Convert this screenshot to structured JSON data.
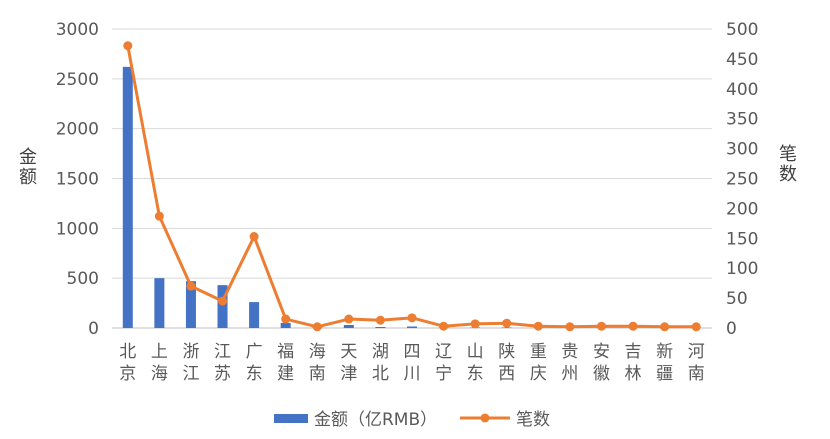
{
  "chart_data": {
    "type": "bar+line",
    "categories": [
      "北京",
      "上海",
      "浙江",
      "江苏",
      "广东",
      "福建",
      "海南",
      "天津",
      "湖北",
      "四川",
      "辽宁",
      "山东",
      "陕西",
      "重庆",
      "贵州",
      "安徽",
      "吉林",
      "新疆",
      "河南"
    ],
    "category_labels": [
      [
        "北",
        "京"
      ],
      [
        "上",
        "海"
      ],
      [
        "浙",
        "江"
      ],
      [
        "江",
        "苏"
      ],
      [
        "广",
        "东"
      ],
      [
        "福",
        "建"
      ],
      [
        "海",
        "南"
      ],
      [
        "天",
        "津"
      ],
      [
        "湖",
        "北"
      ],
      [
        "四",
        "川"
      ],
      [
        "辽",
        "宁"
      ],
      [
        "山",
        "东"
      ],
      [
        "陕",
        "西"
      ],
      [
        "重",
        "庆"
      ],
      [
        "贵",
        "州"
      ],
      [
        "安",
        "徽"
      ],
      [
        "吉",
        "林"
      ],
      [
        "新",
        "疆"
      ],
      [
        "河",
        "南"
      ]
    ],
    "series": [
      {
        "name": "金额（亿RMB）",
        "type": "bar",
        "axis": "left",
        "color": "#4472C4",
        "values": [
          2620,
          500,
          470,
          430,
          260,
          50,
          5,
          30,
          10,
          15,
          3,
          5,
          5,
          3,
          2,
          3,
          2,
          2,
          2
        ]
      },
      {
        "name": "笔数",
        "type": "line",
        "axis": "right",
        "color": "#ED7D31",
        "values": [
          472,
          187,
          70,
          45,
          153,
          15,
          2,
          15,
          13,
          17,
          3,
          7,
          8,
          3,
          2,
          3,
          3,
          2,
          2
        ]
      }
    ],
    "y_left": {
      "label_chars": [
        "金",
        "额"
      ],
      "ylim": [
        0,
        3000
      ],
      "ticks": [
        "0",
        "500",
        "1000",
        "1500",
        "2000",
        "2500",
        "3000"
      ]
    },
    "y_right": {
      "label_chars": [
        "笔",
        "数"
      ],
      "ylim": [
        0,
        500
      ],
      "ticks": [
        "0",
        "50",
        "100",
        "150",
        "200",
        "250",
        "300",
        "350",
        "400",
        "450",
        "500"
      ]
    },
    "grid": true,
    "legend_position": "bottom"
  }
}
